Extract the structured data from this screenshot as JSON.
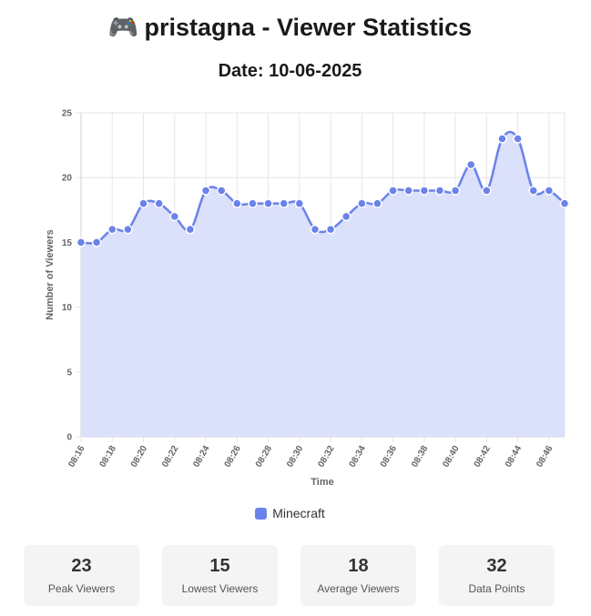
{
  "header": {
    "emoji": "🎮",
    "title": "pristagna - Viewer Statistics",
    "date": "Date: 10-06-2025"
  },
  "chart_data": {
    "type": "area",
    "title": "",
    "xlabel": "Time",
    "ylabel": "Number of Viewers",
    "ylim": [
      0,
      25
    ],
    "yticks": [
      0,
      5,
      10,
      15,
      20,
      25
    ],
    "grid": true,
    "legend_position": "bottom",
    "line_color": "#6b82ea",
    "fill_color": "#dbe0fb",
    "x": [
      "08:16",
      "08:17",
      "08:18",
      "08:19",
      "08:20",
      "08:21",
      "08:22",
      "08:23",
      "08:24",
      "08:25",
      "08:26",
      "08:27",
      "08:28",
      "08:29",
      "08:30",
      "08:31",
      "08:32",
      "08:33",
      "08:34",
      "08:35",
      "08:36",
      "08:37",
      "08:38",
      "08:39",
      "08:40",
      "08:41",
      "08:42",
      "08:43",
      "08:44",
      "08:45",
      "08:46",
      "08:47"
    ],
    "xticks": [
      "08:16",
      "08:18",
      "08:20",
      "08:22",
      "08:24",
      "08:26",
      "08:28",
      "08:30",
      "08:32",
      "08:34",
      "08:36",
      "08:38",
      "08:40",
      "08:42",
      "08:44",
      "08:46"
    ],
    "series": [
      {
        "name": "Minecraft",
        "values": [
          15,
          15,
          16,
          16,
          18,
          18,
          17,
          16,
          19,
          19,
          18,
          18,
          18,
          18,
          18,
          16,
          16,
          17,
          18,
          18,
          19,
          19,
          19,
          19,
          19,
          21,
          19,
          23,
          23,
          19,
          19,
          18
        ]
      }
    ]
  },
  "stats": [
    {
      "value": "23",
      "label": "Peak Viewers"
    },
    {
      "value": "15",
      "label": "Lowest Viewers"
    },
    {
      "value": "18",
      "label": "Average Viewers"
    },
    {
      "value": "32",
      "label": "Data Points"
    }
  ]
}
